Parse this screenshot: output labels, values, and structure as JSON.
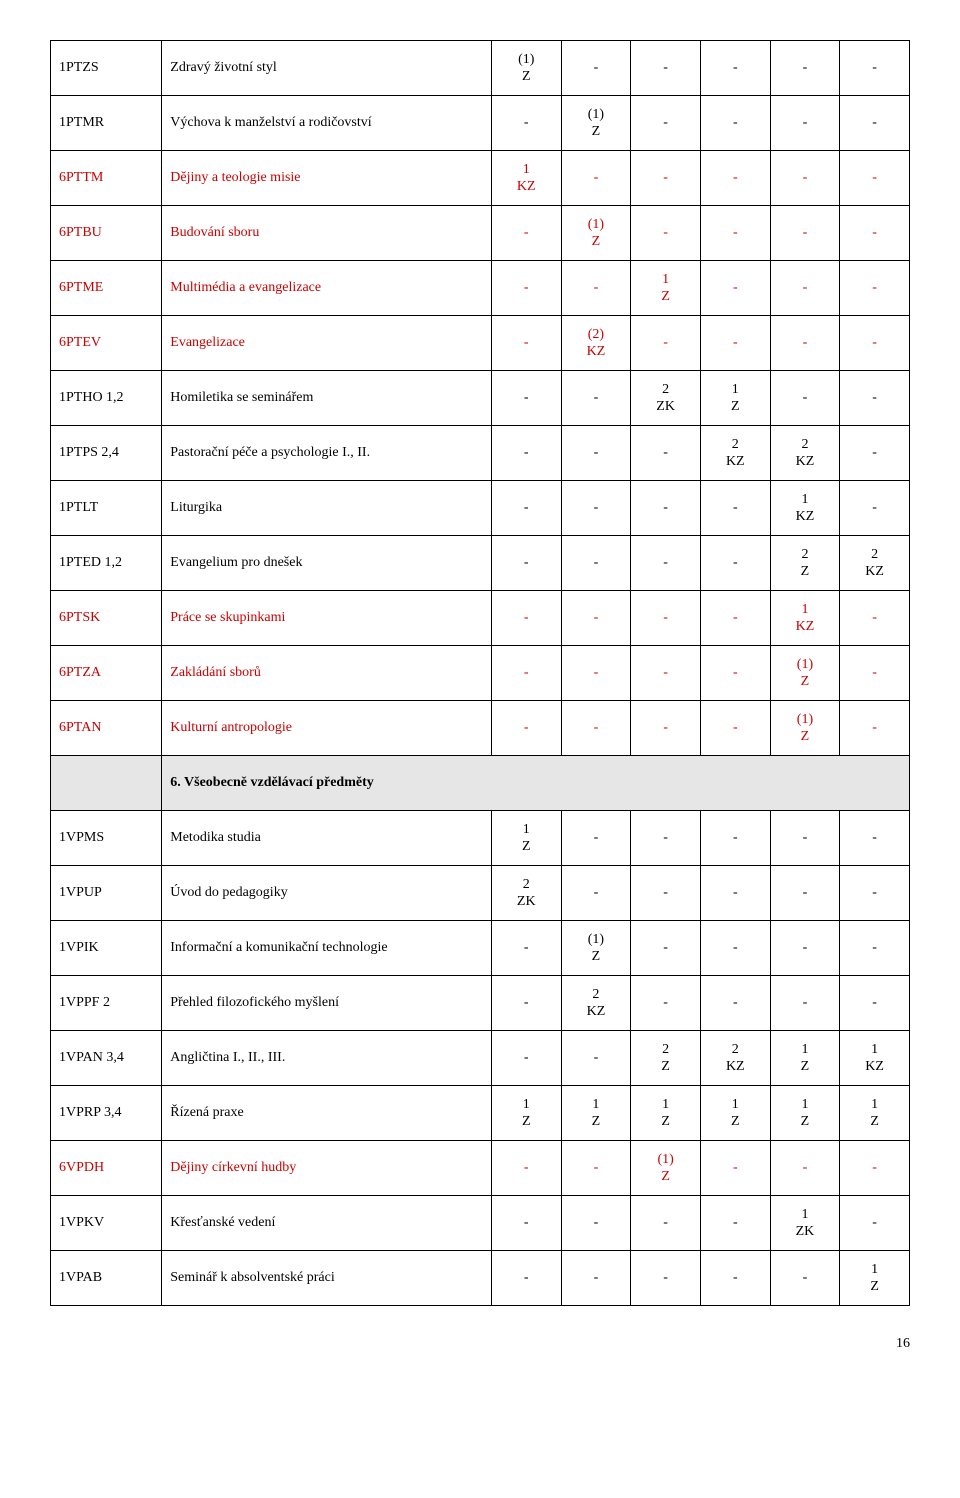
{
  "colors": {
    "border": "#000000",
    "background": "#ffffff",
    "section_bg": "#e6e6e6",
    "text": "#000000",
    "highlight": "#cc0000"
  },
  "font": {
    "family": "Times New Roman",
    "size_pt": 11
  },
  "page_number": "16",
  "section_header": "6. Všeobecně vzdělávací předměty",
  "rows": [
    {
      "code": "1PTZS",
      "name": "Zdravý životní styl",
      "c": [
        "(1)\nZ",
        "-",
        "-",
        "-",
        "-",
        "-"
      ],
      "red": false
    },
    {
      "code": "1PTMR",
      "name": "Výchova k manželství a rodičovství",
      "c": [
        "-",
        "(1)\nZ",
        "-",
        "-",
        "-",
        "-"
      ],
      "red": false
    },
    {
      "code": "6PTTM",
      "name": "Dějiny a teologie misie",
      "c": [
        "1\nKZ",
        "-",
        "-",
        "-",
        "-",
        "-"
      ],
      "red": true
    },
    {
      "code": "6PTBU",
      "name": "Budování sboru",
      "c": [
        "-",
        "(1)\nZ",
        "-",
        "-",
        "-",
        "-"
      ],
      "red": true
    },
    {
      "code": "6PTME",
      "name": "Multimédia a evangelizace",
      "c": [
        "-",
        "-",
        "1\nZ",
        "-",
        "-",
        "-"
      ],
      "red": true
    },
    {
      "code": "6PTEV",
      "name": "Evangelizace",
      "c": [
        "-",
        "(2)\nKZ",
        "-",
        "-",
        "-",
        "-"
      ],
      "red": true
    },
    {
      "code": "1PTHO 1,2",
      "name": "Homiletika se seminářem",
      "c": [
        "-",
        "-",
        "2\nZK",
        "1\nZ",
        "-",
        "-"
      ],
      "red": false
    },
    {
      "code": "1PTPS 2,4",
      "name": "Pastorační péče a psychologie I., II.",
      "c": [
        "-",
        "-",
        "-",
        "2\nKZ",
        "2\nKZ",
        "-"
      ],
      "red": false
    },
    {
      "code": "1PTLT",
      "name": "Liturgika",
      "c": [
        "-",
        "-",
        "-",
        "-",
        "1\nKZ",
        "-"
      ],
      "red": false
    },
    {
      "code": "1PTED 1,2",
      "name": "Evangelium pro dnešek",
      "c": [
        "-",
        "-",
        "-",
        "-",
        "2\nZ",
        "2\nKZ"
      ],
      "red": false
    },
    {
      "code": "6PTSK",
      "name": "Práce se skupinkami",
      "c": [
        "-",
        "-",
        "-",
        "-",
        "1\nKZ",
        "-"
      ],
      "red": true
    },
    {
      "code": "6PTZA",
      "name": "Zakládání sborů",
      "c": [
        "-",
        "-",
        "-",
        "-",
        "(1)\nZ",
        "-"
      ],
      "red": true
    },
    {
      "code": "6PTAN",
      "name": "Kulturní antropologie",
      "c": [
        "-",
        "-",
        "-",
        "-",
        "(1)\nZ",
        "-"
      ],
      "red": true
    }
  ],
  "rows2": [
    {
      "code": "1VPMS",
      "name": "Metodika studia",
      "c": [
        "1\nZ",
        "-",
        "-",
        "-",
        "-",
        "-"
      ],
      "red": false
    },
    {
      "code": "1VPUP",
      "name": "Úvod do pedagogiky",
      "c": [
        "2\nZK",
        "-",
        "-",
        "-",
        "-",
        "-"
      ],
      "red": false
    },
    {
      "code": "1VPIK",
      "name": "Informační a komunikační technologie",
      "c": [
        "-",
        "(1)\nZ",
        "-",
        "-",
        "-",
        "-"
      ],
      "red": false
    },
    {
      "code": "1VPPF 2",
      "name": "Přehled filozofického myšlení",
      "c": [
        "-",
        "2\nKZ",
        "-",
        "-",
        "-",
        "-"
      ],
      "red": false
    },
    {
      "code": "1VPAN 3,4",
      "name": "Angličtina I., II., III.",
      "c": [
        "-",
        "-",
        "2\nZ",
        "2\nKZ",
        "1\nZ",
        "1\nKZ"
      ],
      "red": false
    },
    {
      "code": "1VPRP 3,4",
      "name": "Řízená praxe",
      "c": [
        "1\nZ",
        "1\nZ",
        "1\nZ",
        "1\nZ",
        "1\nZ",
        "1\nZ"
      ],
      "red": false
    },
    {
      "code": "6VPDH",
      "name": "Dějiny církevní hudby",
      "c": [
        "-",
        "-",
        "(1)\nZ",
        "-",
        "-",
        "-"
      ],
      "red": true
    },
    {
      "code": "1VPKV",
      "name": "Křesťanské vedení",
      "c": [
        "-",
        "-",
        "-",
        "-",
        "1\nZK",
        "-"
      ],
      "red": false
    },
    {
      "code": "1VPAB",
      "name": "Seminář k absolventské práci",
      "c": [
        "-",
        "-",
        "-",
        "-",
        "-",
        "1\nZ"
      ],
      "red": false
    }
  ]
}
